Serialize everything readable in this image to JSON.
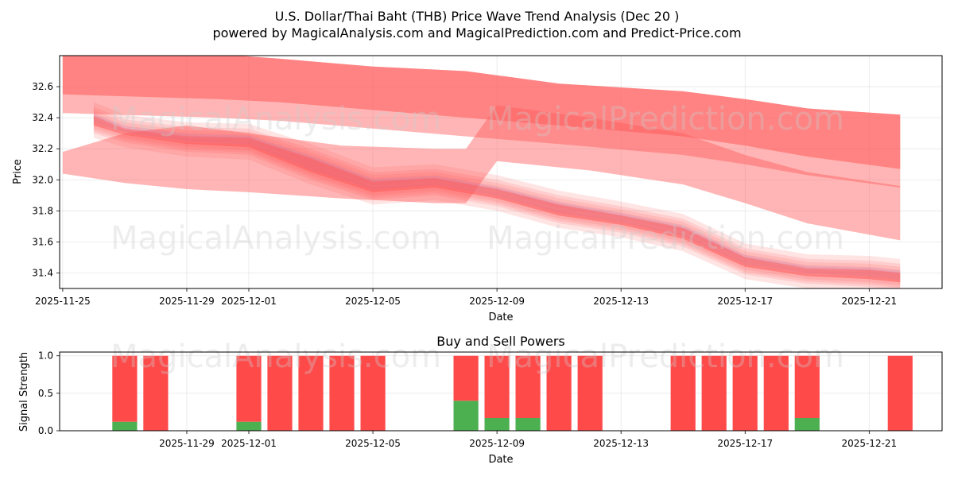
{
  "chart_data": [
    {
      "type": "area",
      "title": "U.S. Dollar/Thai Baht (THB) Price Wave Trend Analysis (Dec 20 )",
      "subtitle": "powered by MagicalAnalysis.com and MagicalPrediction.com and Predict-Price.com",
      "xlabel": "Date",
      "ylabel": "Price",
      "grid": true,
      "xlim": [
        "2025-11-25",
        "2025-12-23"
      ],
      "ylim": [
        31.3,
        32.8
      ],
      "x_ticks": [
        "2025-11-25",
        "2025-11-29",
        "2025-12-01",
        "2025-12-05",
        "2025-12-09",
        "2025-12-13",
        "2025-12-17",
        "2025-12-21"
      ],
      "y_ticks": [
        "31.4",
        "31.6",
        "31.8",
        "32.0",
        "32.2",
        "32.4",
        "32.6"
      ],
      "bands": [
        {
          "name": "upper wave band",
          "color": "#ff5a5a",
          "x": [
            "2025-11-25",
            "2025-11-30",
            "2025-12-02",
            "2025-12-05",
            "2025-12-08",
            "2025-12-11",
            "2025-12-15",
            "2025-12-17",
            "2025-12-19",
            "2025-12-22"
          ],
          "upper": [
            32.82,
            32.81,
            32.78,
            32.73,
            32.7,
            32.62,
            32.57,
            32.52,
            32.46,
            32.42
          ],
          "lower": [
            32.55,
            32.52,
            32.5,
            32.45,
            32.4,
            32.35,
            32.28,
            32.22,
            32.15,
            32.07
          ]
        },
        {
          "name": "mid wave band",
          "color": "#ff5a5a",
          "x": [
            "2025-11-25",
            "2025-11-27",
            "2025-11-29",
            "2025-12-01",
            "2025-12-04",
            "2025-12-07",
            "2025-12-08",
            "2025-12-09",
            "2025-12-12",
            "2025-12-15",
            "2025-12-17",
            "2025-12-19",
            "2025-12-22"
          ],
          "upper": [
            32.18,
            32.3,
            32.35,
            32.3,
            32.22,
            32.2,
            32.2,
            32.48,
            32.4,
            32.3,
            32.16,
            32.05,
            31.96
          ],
          "lower": [
            32.04,
            31.98,
            31.94,
            31.92,
            31.88,
            31.85,
            31.85,
            32.12,
            32.06,
            31.97,
            31.85,
            31.72,
            31.61
          ]
        },
        {
          "name": "lower wave band",
          "color": "#ff5a5a",
          "x": [
            "2025-11-26",
            "2025-11-27",
            "2025-11-29",
            "2025-12-01",
            "2025-12-03",
            "2025-12-05",
            "2025-12-07",
            "2025-12-09",
            "2025-12-11",
            "2025-12-13",
            "2025-12-15",
            "2025-12-17",
            "2025-12-19",
            "2025-12-21",
            "2025-12-22"
          ],
          "upper": [
            32.43,
            32.35,
            32.3,
            32.29,
            32.16,
            32.01,
            32.03,
            31.96,
            31.86,
            31.79,
            31.71,
            31.52,
            31.45,
            31.44,
            31.42
          ],
          "lower": [
            32.33,
            32.27,
            32.21,
            32.19,
            32.03,
            31.9,
            31.93,
            31.86,
            31.75,
            31.69,
            31.6,
            31.42,
            31.36,
            31.34,
            31.32
          ]
        }
      ]
    },
    {
      "type": "bar",
      "title": "Buy and Sell Powers",
      "xlabel": "Date",
      "ylabel": "Signal Strength",
      "grid": true,
      "xlim": [
        "2025-11-25",
        "2025-12-23"
      ],
      "ylim": [
        0,
        1.05
      ],
      "x_ticks": [
        "2025-11-29",
        "2025-12-01",
        "2025-12-05",
        "2025-12-09",
        "2025-12-13",
        "2025-12-17",
        "2025-12-21"
      ],
      "y_ticks": [
        "0.0",
        "0.5",
        "1.0"
      ],
      "series": [
        {
          "name": "Buy",
          "color": "#4caf50",
          "dates": [
            "2025-11-27",
            "2025-11-28",
            "2025-12-01",
            "2025-12-02",
            "2025-12-03",
            "2025-12-04",
            "2025-12-05",
            "2025-12-08",
            "2025-12-09",
            "2025-12-10",
            "2025-12-11",
            "2025-12-12",
            "2025-12-15",
            "2025-12-16",
            "2025-12-17",
            "2025-12-18",
            "2025-12-19",
            "2025-12-22"
          ],
          "values": [
            0.12,
            0.0,
            0.12,
            0.0,
            0.0,
            0.0,
            0.0,
            0.4,
            0.17,
            0.17,
            0.0,
            0.0,
            0.0,
            0.0,
            0.0,
            0.0,
            0.17,
            0.0
          ]
        },
        {
          "name": "Sell",
          "color": "#ff4a4a",
          "dates": [
            "2025-11-27",
            "2025-11-28",
            "2025-12-01",
            "2025-12-02",
            "2025-12-03",
            "2025-12-04",
            "2025-12-05",
            "2025-12-08",
            "2025-12-09",
            "2025-12-10",
            "2025-12-11",
            "2025-12-12",
            "2025-12-15",
            "2025-12-16",
            "2025-12-17",
            "2025-12-18",
            "2025-12-19",
            "2025-12-22"
          ],
          "values": [
            0.88,
            1.0,
            0.88,
            1.0,
            1.0,
            1.0,
            1.0,
            0.6,
            0.83,
            0.83,
            1.0,
            1.0,
            1.0,
            1.0,
            1.0,
            1.0,
            0.83,
            1.0
          ]
        }
      ]
    }
  ],
  "watermarks": {
    "left": "MagicalAnalysis.com",
    "right": "MagicalPrediction.com"
  }
}
